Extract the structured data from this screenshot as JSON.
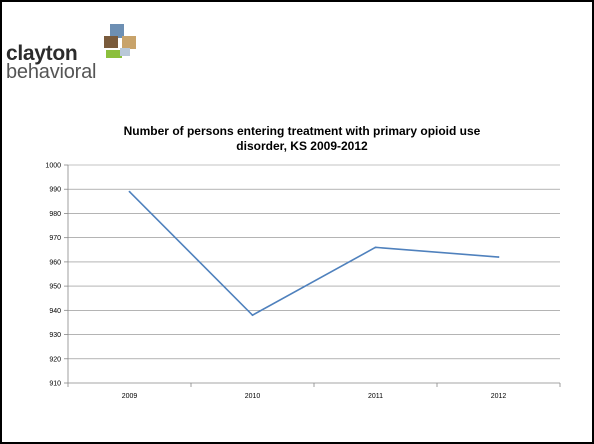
{
  "logo": {
    "word1": "clayton",
    "word2": "behavioral",
    "colors": [
      "#6d8fb3",
      "#c8a36a",
      "#7a5b3c",
      "#8bbf3c",
      "#b9c8d8"
    ]
  },
  "chart_data": {
    "type": "line",
    "title_lines": [
      "Number of persons entering treatment with primary opioid use",
      "disorder, KS 2009-2012"
    ],
    "categories": [
      "2009",
      "2010",
      "2011",
      "2012"
    ],
    "series": [
      {
        "values": [
          989,
          938,
          966,
          962
        ],
        "color": "#4f81bd"
      }
    ],
    "ylim": [
      910,
      1000
    ],
    "yticks": [
      910,
      920,
      930,
      940,
      950,
      960,
      970,
      980,
      990,
      1000
    ],
    "grid": true,
    "legend": "none"
  }
}
